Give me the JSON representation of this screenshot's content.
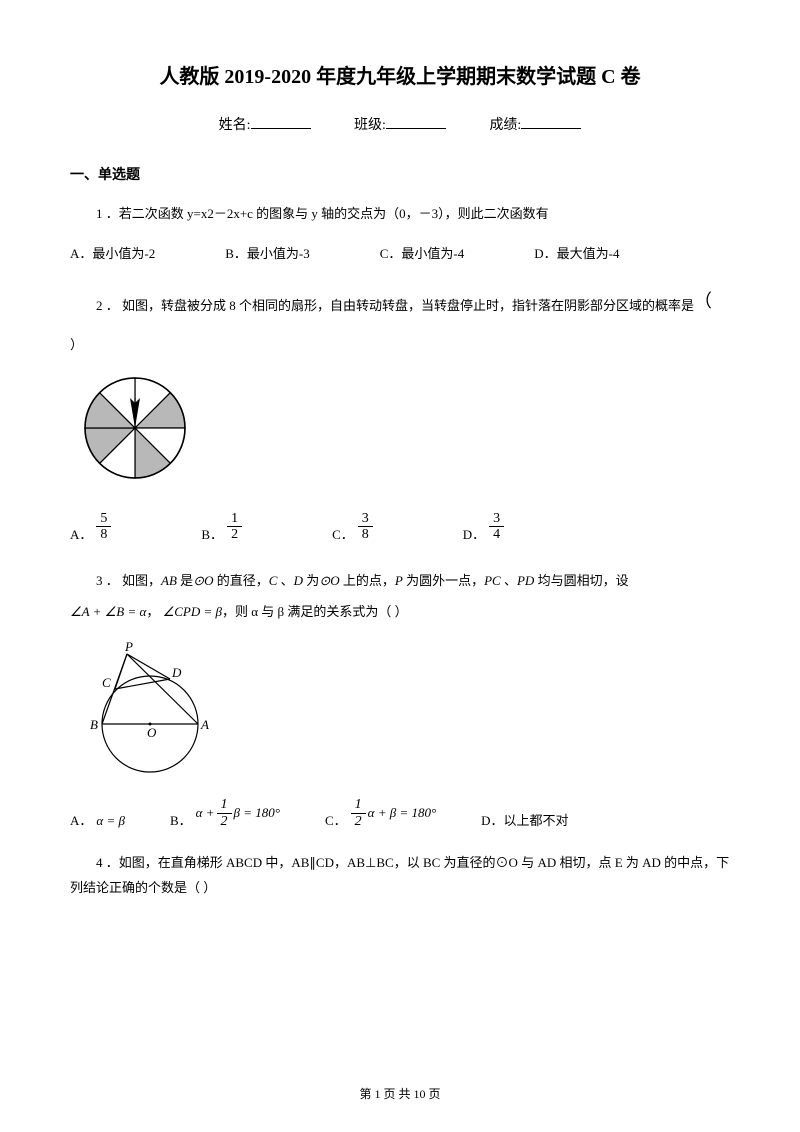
{
  "title": "人教版 2019-2020 年度九年级上学期期末数学试题 C 卷",
  "info": {
    "name_label": "姓名:",
    "class_label": "班级:",
    "score_label": "成绩:"
  },
  "section1": "一、单选题",
  "q1": {
    "text": "1 ．若二次函数 y=x2－2x+c 的图象与 y 轴的交点为（0，－3），则此二次函数有",
    "opts": {
      "a": "A．最小值为-2",
      "b": "B．最小值为-3",
      "c": "C．最小值为-4",
      "d": "D．最大值为-4"
    }
  },
  "q2": {
    "text_part1": "2  ．  如图，转盘被分成 8 个相同的扇形，自由转动转盘，当转盘停止时，指针落在阴影部分区域的概率是",
    "text_part2": "）",
    "spinner": {
      "sectors": 8,
      "shaded_indices": [
        1,
        3,
        5,
        6
      ],
      "fill_color": "#b8b8b8",
      "line_color": "#000000"
    },
    "opts": {
      "a_label": "A．",
      "a_num": "5",
      "a_den": "8",
      "b_label": "B．",
      "b_num": "1",
      "b_den": "2",
      "c_label": "C．",
      "c_num": "3",
      "c_den": "8",
      "d_label": "D．",
      "d_num": "3",
      "d_den": "4"
    }
  },
  "q3": {
    "line1_pre": "3    ．    如图，",
    "line1_ab": "AB",
    "line1_mid1": " 是",
    "line1_circ_o1": "⊙O",
    "line1_mid2": " 的直径，",
    "line1_c": "C",
    "line1_sep1": " 、",
    "line1_d": "D",
    "line1_mid3": " 为",
    "line1_circ_o2": "⊙O",
    "line1_mid4": " 上的点，",
    "line1_p": "P",
    "line1_mid5": " 为圆外一点，",
    "line1_pc": "PC",
    "line1_sep2": " 、",
    "line1_pd": "PD",
    "line1_end": " 均与圆相切，设",
    "line2_eq1": "∠A + ∠B = α",
    "line2_comma1": "，",
    "line2_eq2": "∠CPD = β",
    "line2_end": "，则 α 与 β 满足的关系式为（    ）",
    "opts": {
      "a_label": "A．",
      "a_eq": "α = β",
      "b_label": "B．",
      "b_pre": "α + ",
      "b_num": "1",
      "b_den": "2",
      "b_post": " β = 180°",
      "c_label": "C．",
      "c_num": "1",
      "c_den": "2",
      "c_post": " α + β = 180°",
      "d_label": "D．以上都不对"
    }
  },
  "q4": {
    "text": "4 ．如图，在直角梯形 ABCD 中，AB∥CD，AB⊥BC，以 BC 为直径的⊙O 与 AD 相切，点 E 为 AD 的中点，下列结论正确的个数是（    ）"
  },
  "footer": "第 1 页 共 10 页"
}
